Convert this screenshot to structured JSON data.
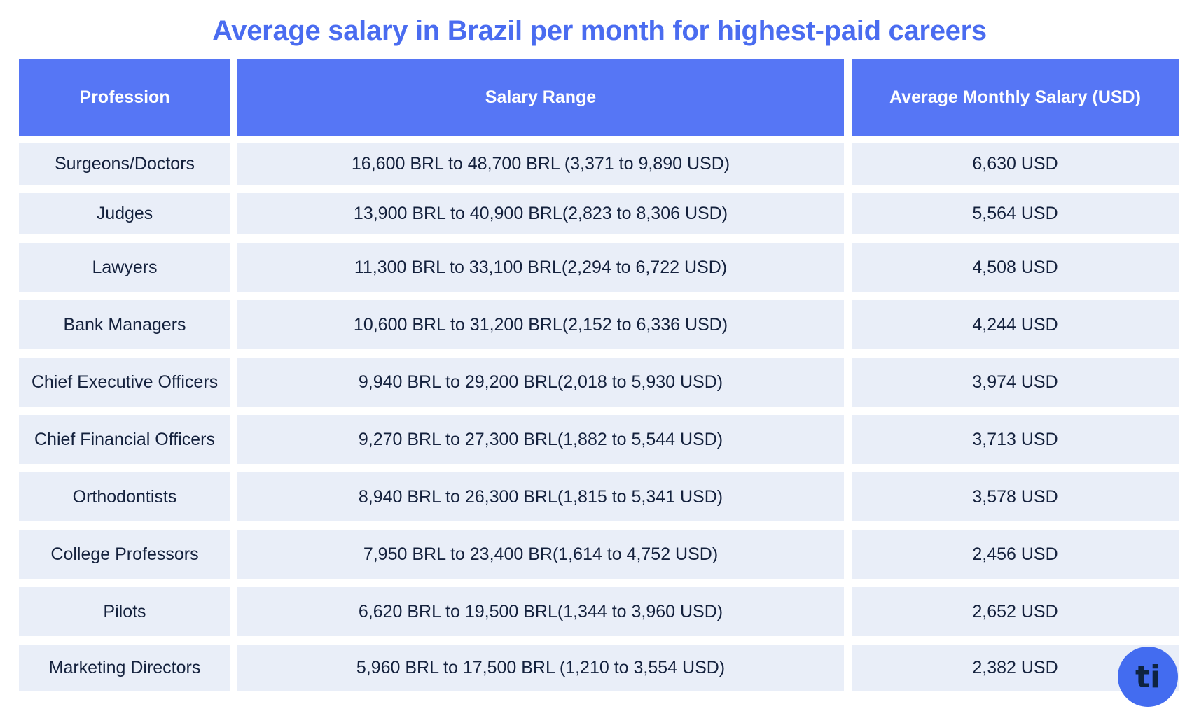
{
  "title": "Average salary in Brazil per month for highest-paid careers",
  "headers": [
    "Profession",
    "Salary Range",
    "Average Monthly Salary (USD)"
  ],
  "rows": [
    [
      "Surgeons/Doctors",
      "16,600 BRL to 48,700 BRL (3,371 to 9,890 USD)",
      "6,630 USD"
    ],
    [
      "Judges",
      "13,900 BRL to 40,900 BRL(2,823 to 8,306 USD)",
      "5,564 USD"
    ],
    [
      "Lawyers",
      "11,300 BRL to 33,100 BRL(2,294 to 6,722 USD)",
      "4,508 USD"
    ],
    [
      "Bank Managers",
      "10,600 BRL to 31,200 BRL(2,152 to 6,336 USD)",
      "4,244 USD"
    ],
    [
      "Chief Executive Officers",
      "9,940 BRL to 29,200 BRL(2,018 to 5,930 USD)",
      "3,974 USD"
    ],
    [
      "Chief Financial Officers",
      "9,270 BRL to 27,300 BRL(1,882 to 5,544 USD)",
      "3,713 USD"
    ],
    [
      "Orthodontists",
      "8,940 BRL to 26,300 BRL(1,815 to 5,341 USD)",
      "3,578 USD"
    ],
    [
      "College Professors",
      "7,950 BRL to 23,400 BR(1,614 to 4,752 USD)",
      "2,456 USD"
    ],
    [
      "Pilots",
      "6,620 BRL to 19,500 BRL(1,344 to 3,960 USD)",
      "2,652 USD"
    ],
    [
      "Marketing Directors",
      "5,960 BRL to 17,500 BRL (1,210 to 3,554 USD)",
      "2,382 USD"
    ]
  ],
  "logo": {
    "text": "ti",
    "color": "#436cf0"
  },
  "colors": {
    "title": "#4a6cf0",
    "header_bg": "#5676f5",
    "row_bg": "#e9eef8"
  }
}
